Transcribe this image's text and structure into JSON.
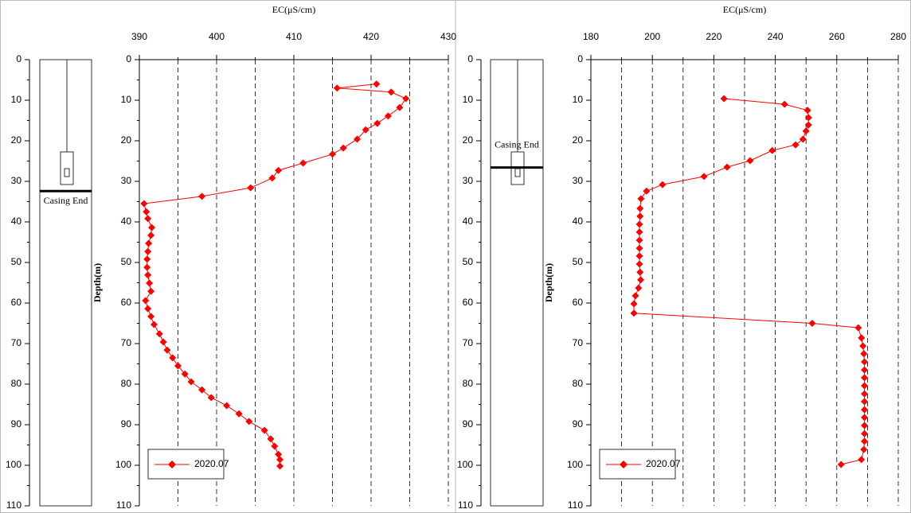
{
  "chart_data": [
    {
      "type": "line",
      "title": "EC(μS/cm)",
      "y_label": "Depth(m)",
      "annotation": "Casing End",
      "casing_depth": 32.4,
      "y": [
        6,
        7,
        8,
        9.6,
        11.8,
        13.9,
        15.7,
        17.3,
        19.6,
        21.8,
        23.3,
        25.5,
        27.3,
        29.2,
        31.6,
        33.7,
        35.5,
        37.5,
        39.2,
        41.4,
        43.3,
        45.3,
        47.3,
        49.2,
        51.2,
        53.1,
        55.1,
        57.1,
        59.4,
        61.4,
        63.3,
        65.3,
        67.6,
        69.6,
        71.6,
        73.5,
        75.5,
        77.5,
        79.4,
        81.4,
        83.3,
        85.3,
        87.3,
        89.2,
        91.4,
        93.5,
        95.3,
        97.3,
        98.6,
        100.2
      ],
      "series": [
        {
          "name": "2020.07",
          "color": "#ff0000",
          "values": [
            420.7,
            415.6,
            422.6,
            424.5,
            423.7,
            422.2,
            420.8,
            419.3,
            418.2,
            416.4,
            415,
            411.2,
            408,
            407.2,
            404.4,
            398.1,
            390.6,
            390.9,
            391.1,
            391.6,
            391.5,
            391.2,
            391.1,
            391,
            391,
            391.1,
            391.3,
            391.5,
            390.8,
            391.1,
            391.5,
            391.9,
            392.6,
            393.1,
            393.6,
            394.3,
            395,
            395.9,
            396.7,
            398.1,
            399.3,
            401.3,
            402.9,
            404.2,
            406.2,
            407,
            407.5,
            408,
            408.2,
            408.2
          ]
        }
      ],
      "xlim": [
        390,
        430
      ],
      "xticks": [
        390,
        400,
        410,
        420,
        430
      ],
      "x_minor_grid": [
        395,
        405,
        415,
        425
      ],
      "ylim": [
        0,
        110
      ],
      "yticks": [
        0,
        10,
        20,
        30,
        40,
        50,
        60,
        70,
        80,
        90,
        100,
        110
      ],
      "y_inverted": true,
      "grid": true,
      "legend": "lower left"
    },
    {
      "type": "line",
      "title": "EC(μS/cm)",
      "y_label": "Depth(m)",
      "annotation": "Casing End",
      "casing_depth": 26.6,
      "y": [
        9.6,
        11,
        12.5,
        14.3,
        16.1,
        17.6,
        19.6,
        21,
        22.4,
        24.9,
        26.5,
        28.8,
        30.8,
        32.4,
        34.3,
        36.7,
        38.6,
        40.6,
        42.5,
        44.5,
        46.5,
        48.4,
        50.4,
        52.4,
        54.3,
        56.3,
        58.2,
        60.2,
        62.5,
        65,
        66.1,
        68.6,
        70.6,
        72.5,
        74.5,
        76.5,
        78.4,
        80.4,
        82.4,
        84.3,
        86.3,
        88.2,
        90.2,
        92.2,
        94.1,
        96.1,
        98.6,
        99.8
      ],
      "series": [
        {
          "name": "2020.07",
          "color": "#ff0000",
          "values": [
            223.3,
            243,
            250.5,
            250.8,
            250.8,
            250,
            249,
            246.6,
            239,
            231.8,
            224.3,
            216.8,
            203.3,
            198.1,
            196.3,
            196,
            196,
            195.8,
            195.8,
            195.8,
            195.8,
            195.8,
            195.8,
            196,
            196.2,
            195.5,
            194.5,
            194,
            194,
            252,
            267,
            268,
            268.5,
            268.8,
            269,
            269,
            269,
            269,
            269,
            269,
            269,
            269,
            269,
            269,
            269,
            268.8,
            268,
            261.4
          ]
        }
      ],
      "xlim": [
        180,
        280
      ],
      "xticks": [
        180,
        200,
        220,
        240,
        260,
        280
      ],
      "x_minor_grid": [
        190,
        210,
        230,
        250,
        270
      ],
      "ylim": [
        0,
        110
      ],
      "yticks": [
        0,
        10,
        20,
        30,
        40,
        50,
        60,
        70,
        80,
        90,
        100,
        110
      ],
      "y_inverted": true,
      "grid": true,
      "legend": "lower left"
    }
  ]
}
